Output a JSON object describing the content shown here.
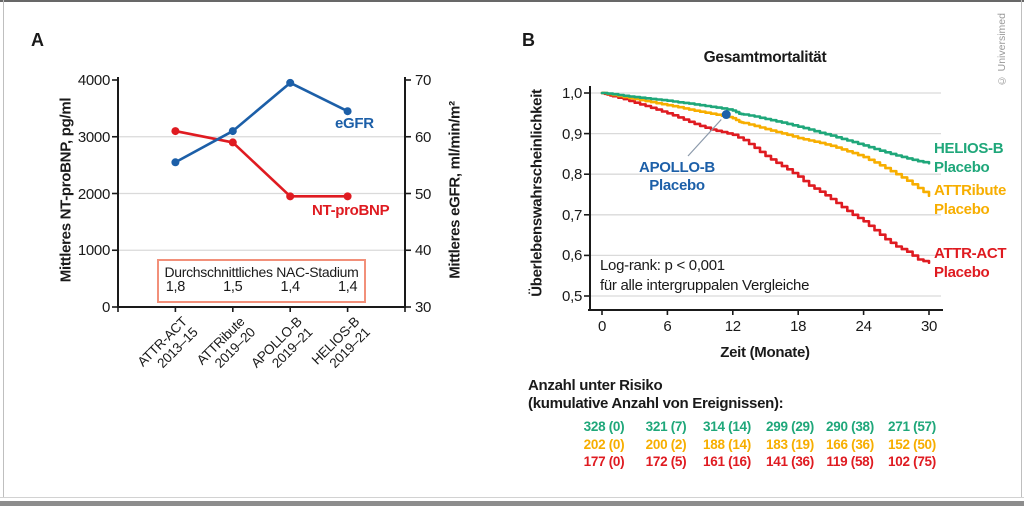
{
  "copyright": "© Universimed",
  "colors": {
    "blue": "#1c5fa8",
    "red": "#df1b21",
    "green": "#1fa77a",
    "yellow": "#f7ae00",
    "box_border": "#f2907a",
    "grid": "#dadada",
    "axis": "#1a1a1a",
    "callout_line": "#8c9aab"
  },
  "chart_data": [
    {
      "id": "panel_a",
      "panel_label": "A",
      "type": "line",
      "categories": [
        [
          "ATTR-ACT",
          "2013–15"
        ],
        [
          "ATTRibute",
          "2019–20"
        ],
        [
          "APOLLO-B",
          "2019–21"
        ],
        [
          "HELIOS-B",
          "2019–21"
        ]
      ],
      "ylabel_left": "Mittleres NT-proBNP, pg/ml",
      "ylabel_right": "Mittleres eGFR, ml/min/m²",
      "yticks_left": [
        "4000",
        "3000",
        "2000",
        "1000",
        "0"
      ],
      "yticks_right": [
        "70",
        "60",
        "50",
        "40",
        "30"
      ],
      "ylim_left": [
        0,
        4000
      ],
      "ylim_right": [
        30,
        70
      ],
      "grid": "horizontal",
      "series": [
        {
          "name": "NT-proBNP",
          "axis": "left",
          "color_key": "red",
          "values": [
            3100,
            2900,
            1950,
            1950
          ]
        },
        {
          "name": "eGFR",
          "axis": "right",
          "color_key": "blue",
          "values": [
            55.5,
            61,
            69.5,
            64.5
          ]
        }
      ],
      "nac_box": {
        "title": "Durchschnittliches NAC-Stadium",
        "values": [
          "1,8",
          "1,5",
          "1,4",
          "1,4"
        ]
      }
    },
    {
      "id": "panel_b",
      "panel_label": "B",
      "type": "line",
      "title": "Gesamtmortalität",
      "ylabel": "Überlebenswahrscheinlichkeit",
      "xlabel": "Zeit (Monate)",
      "yticks": [
        "1,0",
        "0,9",
        "0,8",
        "0,7",
        "0,6",
        "0,5"
      ],
      "ytick_values": [
        1.0,
        0.9,
        0.8,
        0.7,
        0.6,
        0.5
      ],
      "xticks": [
        "0",
        "6",
        "12",
        "18",
        "24",
        "30"
      ],
      "xtick_values": [
        0,
        6,
        12,
        18,
        24,
        30
      ],
      "ylim": [
        0.5,
        1.0
      ],
      "xlim": [
        0,
        30
      ],
      "annotation": [
        "Log-rank: p < 0,001",
        "für alle intergruppalen Vergleiche"
      ],
      "callout": {
        "label_lines": [
          "APOLLO-B",
          "Placebo"
        ],
        "point": [
          11.4,
          0.947
        ]
      },
      "series": [
        {
          "name": "HELIOS-B Placebo",
          "label_lines": [
            "HELIOS-B",
            "Placebo"
          ],
          "color_key": "green",
          "points": [
            [
              0,
              1.0
            ],
            [
              1,
              0.997
            ],
            [
              2,
              0.993
            ],
            [
              3,
              0.99
            ],
            [
              4,
              0.987
            ],
            [
              5,
              0.984
            ],
            [
              6,
              0.981
            ],
            [
              7,
              0.977
            ],
            [
              8,
              0.974
            ],
            [
              9,
              0.97
            ],
            [
              10,
              0.966
            ],
            [
              11,
              0.962
            ],
            [
              12,
              0.957
            ],
            [
              12.6,
              0.949
            ],
            [
              13,
              0.947
            ],
            [
              14,
              0.942
            ],
            [
              15,
              0.936
            ],
            [
              16,
              0.93
            ],
            [
              17,
              0.924
            ],
            [
              18,
              0.917
            ],
            [
              19,
              0.91
            ],
            [
              20,
              0.902
            ],
            [
              21,
              0.895
            ],
            [
              22,
              0.887
            ],
            [
              23,
              0.879
            ],
            [
              24,
              0.871
            ],
            [
              25,
              0.862
            ],
            [
              26,
              0.854
            ],
            [
              27,
              0.846
            ],
            [
              28,
              0.839
            ],
            [
              29,
              0.832
            ],
            [
              30,
              0.827
            ]
          ]
        },
        {
          "name": "ATTRibute Placebo",
          "label_lines": [
            "ATTRibute",
            "Placebo"
          ],
          "color_key": "yellow",
          "points": [
            [
              0,
              1.0
            ],
            [
              1,
              0.995
            ],
            [
              2,
              0.99
            ],
            [
              3,
              0.985
            ],
            [
              4,
              0.98
            ],
            [
              5,
              0.975
            ],
            [
              6,
              0.97
            ],
            [
              7,
              0.965
            ],
            [
              8,
              0.959
            ],
            [
              9,
              0.954
            ],
            [
              10,
              0.949
            ],
            [
              11,
              0.944
            ],
            [
              12,
              0.938
            ],
            [
              12.6,
              0.929
            ],
            [
              13,
              0.926
            ],
            [
              14,
              0.919
            ],
            [
              15,
              0.911
            ],
            [
              16,
              0.904
            ],
            [
              17,
              0.897
            ],
            [
              18,
              0.889
            ],
            [
              19,
              0.883
            ],
            [
              20,
              0.877
            ],
            [
              21,
              0.87
            ],
            [
              22,
              0.861
            ],
            [
              23,
              0.852
            ],
            [
              24,
              0.842
            ],
            [
              25,
              0.829
            ],
            [
              26,
              0.815
            ],
            [
              27,
              0.8
            ],
            [
              28,
              0.784
            ],
            [
              29,
              0.766
            ],
            [
              30,
              0.747
            ]
          ]
        },
        {
          "name": "ATTR-ACT Placebo",
          "label_lines": [
            "ATTR-ACT",
            "Placebo"
          ],
          "color_key": "red",
          "points": [
            [
              0,
              1.0
            ],
            [
              0.5,
              0.996
            ],
            [
              1,
              0.992
            ],
            [
              2,
              0.985
            ],
            [
              3,
              0.976
            ],
            [
              4,
              0.968
            ],
            [
              5,
              0.959
            ],
            [
              6,
              0.95
            ],
            [
              7,
              0.94
            ],
            [
              8,
              0.929
            ],
            [
              9,
              0.919
            ],
            [
              10,
              0.91
            ],
            [
              11,
              0.904
            ],
            [
              12,
              0.897
            ],
            [
              13,
              0.884
            ],
            [
              14,
              0.865
            ],
            [
              15,
              0.845
            ],
            [
              16,
              0.828
            ],
            [
              17,
              0.812
            ],
            [
              18,
              0.794
            ],
            [
              19,
              0.772
            ],
            [
              20,
              0.757
            ],
            [
              21,
              0.739
            ],
            [
              22,
              0.719
            ],
            [
              23,
              0.7
            ],
            [
              24,
              0.684
            ],
            [
              25,
              0.662
            ],
            [
              26,
              0.64
            ],
            [
              27,
              0.622
            ],
            [
              28,
              0.609
            ],
            [
              29,
              0.59
            ],
            [
              30,
              0.582
            ]
          ]
        }
      ],
      "risk_table": {
        "header_lines": [
          "Anzahl unter Risiko",
          "(kumulative Anzahl von Ereignissen):"
        ],
        "rows": [
          {
            "color_key": "green",
            "cells": [
              "328 (0)",
              "321 (7)",
              "314 (14)",
              "299 (29)",
              "290 (38)",
              "271 (57)"
            ]
          },
          {
            "color_key": "yellow",
            "cells": [
              "202 (0)",
              "200 (2)",
              "188 (14)",
              "183 (19)",
              "166 (36)",
              "152 (50)"
            ]
          },
          {
            "color_key": "red",
            "cells": [
              "177 (0)",
              "172 (5)",
              "161 (16)",
              "141 (36)",
              "119 (58)",
              "102 (75)"
            ]
          }
        ]
      }
    }
  ]
}
